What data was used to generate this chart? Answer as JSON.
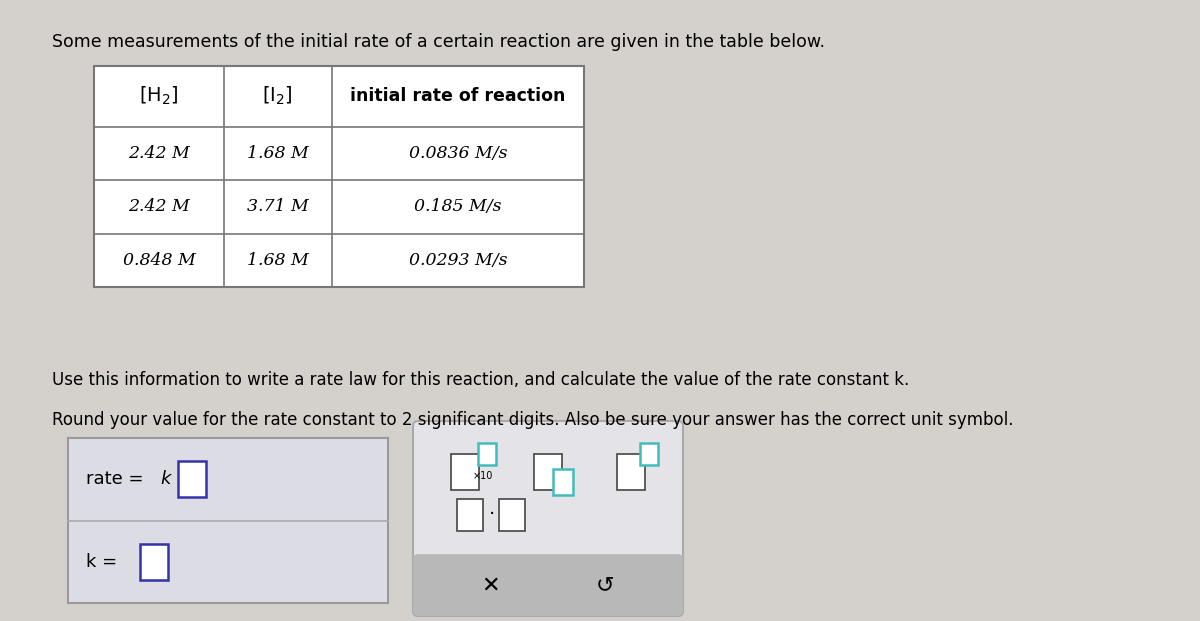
{
  "bg_color": "#d4d0cc",
  "title_text": "Some measurements of the initial rate of a certain reaction are given in the table below.",
  "col_headers": [
    "[H₂]",
    "[I₂]",
    "initial rate of reaction"
  ],
  "table_rows": [
    [
      "2.42 M",
      "1.68 M",
      "0.0836 M/s"
    ],
    [
      "2.42 M",
      "3.71 M",
      "0.185 M/s"
    ],
    [
      "0.848 M",
      "1.68 M",
      "0.0293 M/s"
    ]
  ],
  "info_text1": "Use this information to write a rate law for this reaction, and calculate the valuе of the rate constant k.",
  "info_text2": "Round your value for the rate constant to 2 significant digits. Also be sure your answer has the correct unit symbol.",
  "input_box_color": "#3333aa",
  "teal_color": "#44bbbb",
  "left_box_bg": "#dcdce4",
  "right_box_bg": "#e4e4e8",
  "gray_btn_bg": "#b8b8b8"
}
